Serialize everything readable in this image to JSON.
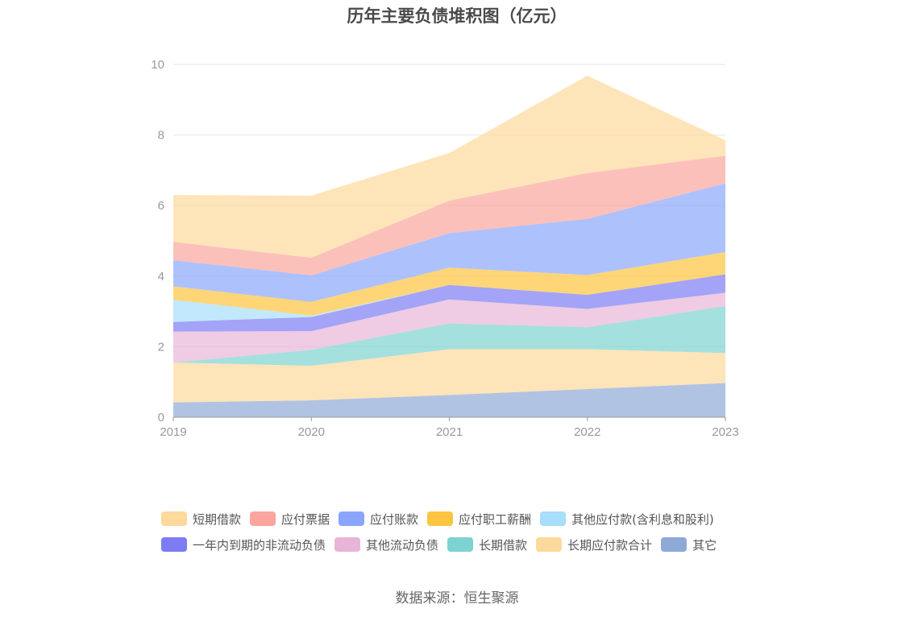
{
  "chart_data": {
    "type": "area",
    "stacked": true,
    "title": "历年主要负债堆积图（亿元）",
    "source": "数据来源：恒生聚源",
    "categories": [
      "2019",
      "2020",
      "2021",
      "2022",
      "2023"
    ],
    "ylim": [
      0,
      10
    ],
    "yticks": [
      "0",
      "2",
      "4",
      "6",
      "8",
      "10"
    ],
    "grid": true,
    "legend_position": "bottom",
    "series": [
      {
        "name": "其它",
        "color": "#8fa9d6",
        "values": [
          0.42,
          0.48,
          0.63,
          0.8,
          0.97
        ]
      },
      {
        "name": "长期应付款合计",
        "color": "#fdd99b",
        "values": [
          1.13,
          0.98,
          1.3,
          1.13,
          0.85
        ]
      },
      {
        "name": "长期借款",
        "color": "#7dd3d0",
        "values": [
          0.0,
          0.45,
          0.73,
          0.62,
          1.33
        ]
      },
      {
        "name": "其他流动负债",
        "color": "#e8b5d8",
        "values": [
          0.88,
          0.53,
          0.68,
          0.52,
          0.38
        ]
      },
      {
        "name": "一年内到期的非流动负债",
        "color": "#7c7cf4",
        "values": [
          0.27,
          0.4,
          0.41,
          0.4,
          0.52
        ]
      },
      {
        "name": "其他应付款(含利息和股利)",
        "color": "#a6defc",
        "values": [
          0.63,
          0.04,
          0.0,
          0.0,
          0.0
        ]
      },
      {
        "name": "应付职工薪酬",
        "color": "#fdc43f",
        "values": [
          0.38,
          0.39,
          0.49,
          0.56,
          0.63
        ]
      },
      {
        "name": "应付账款",
        "color": "#8aa6fc",
        "values": [
          0.74,
          0.75,
          0.98,
          1.59,
          1.95
        ]
      },
      {
        "name": "应付票据",
        "color": "#fba59e",
        "values": [
          0.52,
          0.5,
          0.92,
          1.3,
          0.78
        ]
      },
      {
        "name": "短期借款",
        "color": "#fdd99b",
        "values": [
          1.33,
          1.76,
          1.35,
          2.76,
          0.44
        ]
      }
    ]
  },
  "legend": {
    "row1": [
      "短期借款",
      "应付票据",
      "应付账款",
      "应付职工薪酬",
      "其他应付款(含利息和股利)"
    ],
    "row2": [
      "一年内到期的非流动负债",
      "其他流动负债",
      "长期借款",
      "长期应付款合计",
      "其它"
    ]
  },
  "colors": {
    "短期借款": "#fdd99b",
    "应付票据": "#fba59e",
    "应付账款": "#8aa6fc",
    "应付职工薪酬": "#fdc43f",
    "其他应付款(含利息和股利)": "#a6defc",
    "一年内到期的非流动负债": "#7c7cf4",
    "其他流动负债": "#e8b5d8",
    "长期借款": "#7dd3d0",
    "长期应付款合计": "#fdd99b",
    "其它": "#8fa9d6"
  }
}
